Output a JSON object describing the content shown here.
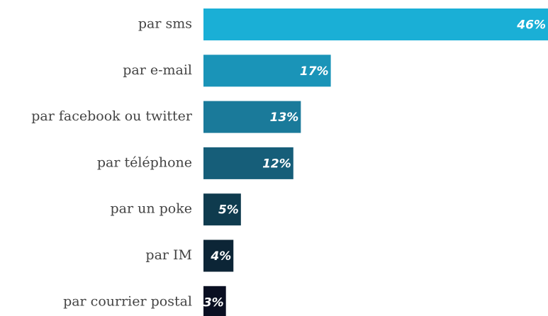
{
  "chart_data": {
    "type": "bar",
    "orientation": "horizontal",
    "categories": [
      "par sms",
      "par e-mail",
      "par facebook ou twitter",
      "par téléphone",
      "par un poke",
      "par IM",
      "par courrier postal"
    ],
    "values": [
      46,
      17,
      13,
      12,
      5,
      4,
      3
    ],
    "value_labels": [
      "46%",
      "17%",
      "13%",
      "12%",
      "5%",
      "4%",
      "3%"
    ],
    "colors": [
      "#1aafd6",
      "#1a94b8",
      "#1a7a9a",
      "#165e79",
      "#0f3b4e",
      "#0c2536",
      "#0a0f22"
    ]
  }
}
